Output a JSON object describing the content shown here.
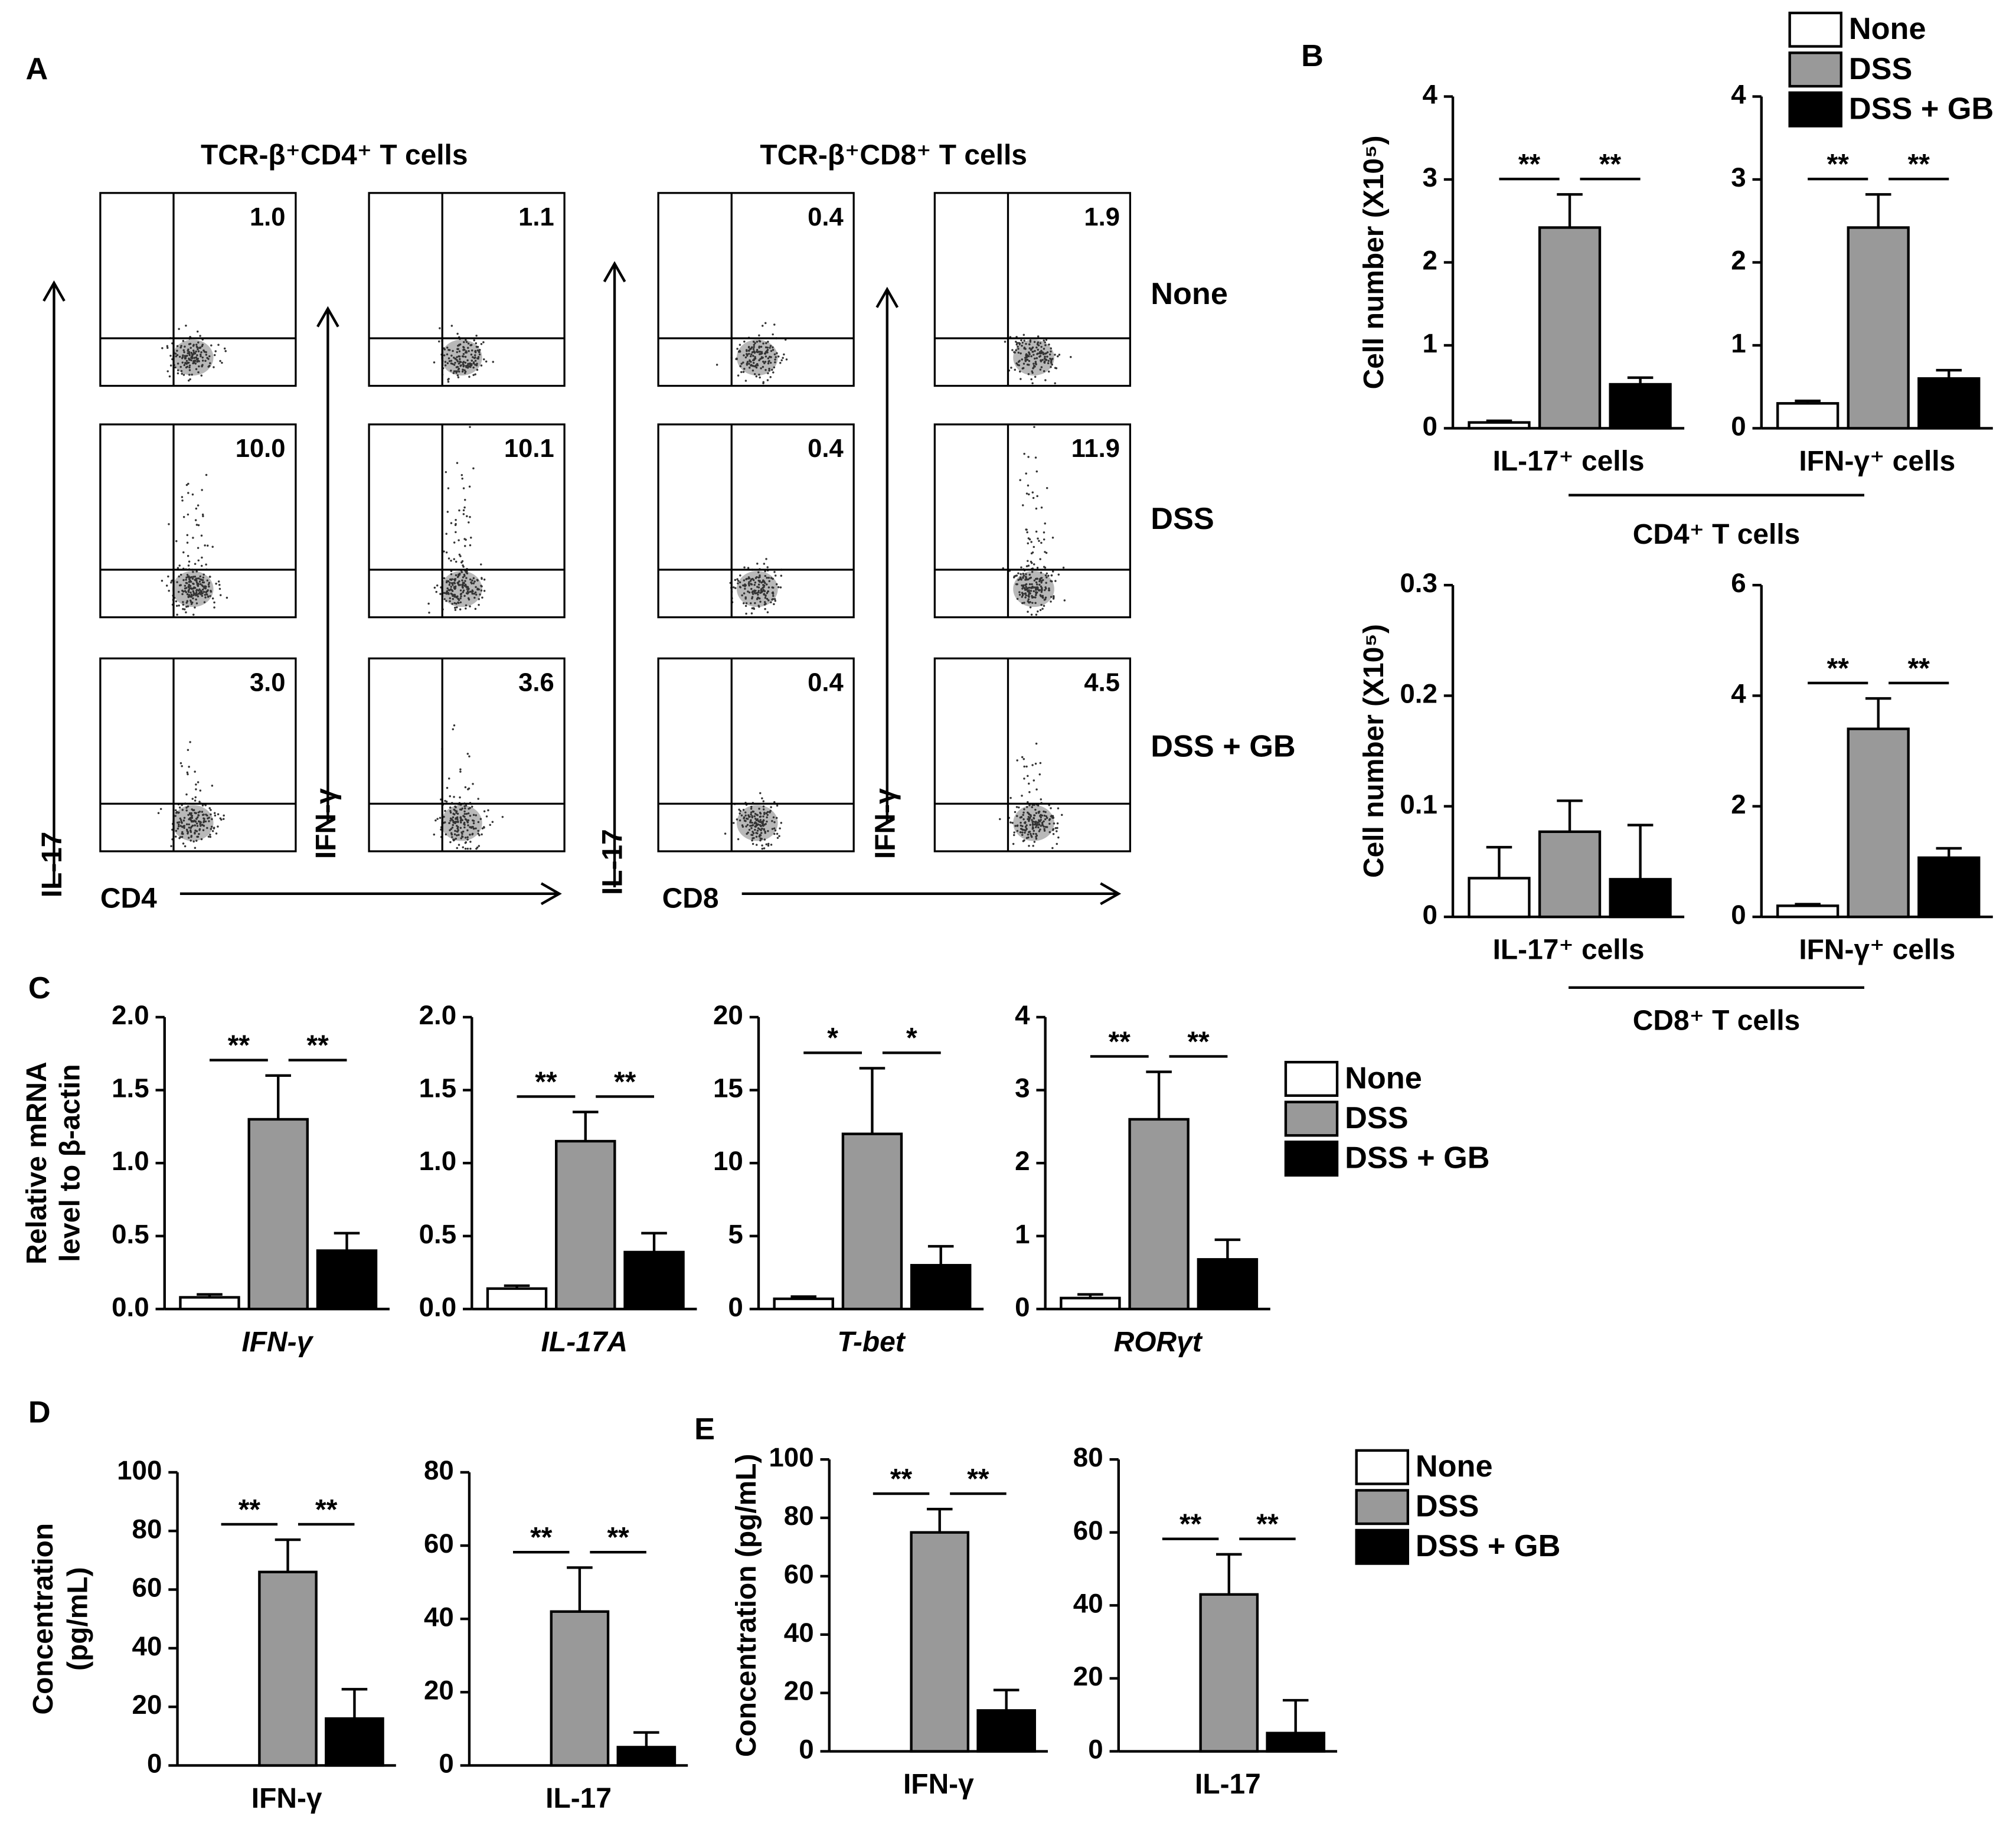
{
  "panel_labels": [
    "A",
    "B",
    "C",
    "D",
    "E"
  ],
  "flow": {
    "column_titles": [
      "TCR-β⁺CD4⁺ T cells",
      "TCR-β⁺CD8⁺ T cells"
    ],
    "row_labels": [
      "None",
      "DSS",
      "DSS + GB"
    ],
    "y_labels": [
      "IL-17",
      "IFN-γ",
      "IL-17",
      "IFN-γ"
    ],
    "x_labels": [
      "CD4",
      "CD8"
    ],
    "percentages": [
      [
        "1.0",
        "1.1",
        "0.4",
        "1.9"
      ],
      [
        "10.0",
        "10.1",
        "0.4",
        "11.9"
      ],
      [
        "3.0",
        "3.6",
        "0.4",
        "4.5"
      ]
    ]
  },
  "groups": [
    {
      "label": "CD4⁺ T cells"
    },
    {
      "label": "CD8⁺ T cells"
    }
  ],
  "legends": [
    {
      "entries": [
        {
          "name": "None",
          "color": "#ffffff"
        },
        {
          "name": "DSS",
          "color": "#999999"
        },
        {
          "name": "DSS + GB",
          "color": "#000000"
        }
      ]
    },
    {
      "entries": [
        {
          "name": "None",
          "color": "#ffffff"
        },
        {
          "name": "DSS",
          "color": "#999999"
        },
        {
          "name": "DSS + GB",
          "color": "#000000"
        }
      ]
    },
    {
      "entries": [
        {
          "name": "None",
          "color": "#ffffff"
        },
        {
          "name": "DSS",
          "color": "#999999"
        },
        {
          "name": "DSS + GB",
          "color": "#000000"
        }
      ]
    }
  ],
  "chart_data": [
    {
      "type": "bar",
      "xlabel": "IL-17⁺ cells",
      "ylabel": "Cell number (X10⁵)",
      "values": [
        0.07,
        2.42,
        0.53
      ],
      "errors": [
        0.02,
        0.4,
        0.08
      ],
      "colors": [
        "#ffffff",
        "#999999",
        "#000000"
      ],
      "ylim": [
        0,
        4
      ],
      "yticks": [
        0,
        1,
        2,
        3,
        4
      ],
      "significance": [
        "**",
        "**"
      ]
    },
    {
      "type": "bar",
      "xlabel": "IFN-γ⁺ cells",
      "values": [
        0.3,
        2.42,
        0.6
      ],
      "errors": [
        0.03,
        0.4,
        0.1
      ],
      "colors": [
        "#ffffff",
        "#999999",
        "#000000"
      ],
      "ylim": [
        0,
        4
      ],
      "yticks": [
        0,
        1,
        2,
        3,
        4
      ],
      "significance": [
        "**",
        "**"
      ]
    },
    {
      "type": "bar",
      "xlabel": "IL-17⁺ cells",
      "ylabel": "Cell number (X10⁵)",
      "values": [
        0.035,
        0.077,
        0.034
      ],
      "errors": [
        0.028,
        0.028,
        0.049
      ],
      "colors": [
        "#ffffff",
        "#999999",
        "#000000"
      ],
      "ylim": [
        0,
        0.3
      ],
      "yticks": [
        0,
        0.1,
        0.2,
        0.3
      ]
    },
    {
      "type": "bar",
      "xlabel": "IFN-γ⁺ cells",
      "values": [
        0.2,
        3.4,
        1.07
      ],
      "errors": [
        0.03,
        0.55,
        0.17
      ],
      "colors": [
        "#ffffff",
        "#999999",
        "#000000"
      ],
      "ylim": [
        0,
        6
      ],
      "yticks": [
        0,
        2,
        4,
        6
      ],
      "significance": [
        "**",
        "**"
      ]
    },
    {
      "type": "bar",
      "xlabel": "IFN-γ",
      "ylabel": [
        "Relative mRNA",
        "level to β-actin"
      ],
      "values": [
        0.08,
        1.3,
        0.4
      ],
      "errors": [
        0.02,
        0.3,
        0.12
      ],
      "colors": [
        "#ffffff",
        "#999999",
        "#000000"
      ],
      "ylim": [
        0,
        2
      ],
      "yticks": [
        {
          "value": 0,
          "label": "0.0"
        },
        0.5,
        {
          "value": 1,
          "label": "1.0"
        },
        1.5,
        {
          "value": 2,
          "label": "2.0"
        }
      ],
      "significance": [
        "**",
        "**"
      ]
    },
    {
      "type": "bar",
      "xlabel": "IL-17A",
      "values": [
        0.14,
        1.15,
        0.39
      ],
      "errors": [
        0.02,
        0.2,
        0.13
      ],
      "colors": [
        "#ffffff",
        "#999999",
        "#000000"
      ],
      "ylim": [
        0,
        2
      ],
      "yticks": [
        {
          "value": 0,
          "label": "0.0"
        },
        0.5,
        {
          "value": 1,
          "label": "1.0"
        },
        1.5,
        {
          "value": 2,
          "label": "2.0"
        }
      ],
      "significance": [
        "**",
        "**"
      ]
    },
    {
      "type": "bar",
      "xlabel": "T-bet",
      "values": [
        0.7,
        12,
        3
      ],
      "errors": [
        0.15,
        4.5,
        1.3
      ],
      "colors": [
        "#ffffff",
        "#999999",
        "#000000"
      ],
      "ylim": [
        0,
        20
      ],
      "yticks": [
        0,
        5,
        10,
        15,
        20
      ],
      "significance": [
        "*",
        "*"
      ]
    },
    {
      "type": "bar",
      "xlabel": "RORγt",
      "values": [
        0.15,
        2.6,
        0.68
      ],
      "errors": [
        0.05,
        0.65,
        0.27
      ],
      "colors": [
        "#ffffff",
        "#999999",
        "#000000"
      ],
      "ylim": [
        0,
        4
      ],
      "yticks": [
        0,
        1,
        2,
        3,
        4
      ],
      "significance": [
        "**",
        "**"
      ]
    },
    {
      "type": "bar",
      "xlabel": "IFN-γ",
      "ylabel": [
        "Concentration",
        "(pg/mL)"
      ],
      "values": [
        0,
        66,
        16
      ],
      "errors": [
        null,
        11,
        10
      ],
      "colors": [
        "#ffffff",
        "#999999",
        "#000000"
      ],
      "ylim": [
        0,
        100
      ],
      "yticks": [
        0,
        20,
        40,
        60,
        80,
        100
      ],
      "significance": [
        "**",
        "**"
      ]
    },
    {
      "type": "bar",
      "xlabel": "IL-17",
      "values": [
        0,
        42,
        5
      ],
      "errors": [
        null,
        12,
        4
      ],
      "colors": [
        "#ffffff",
        "#999999",
        "#000000"
      ],
      "ylim": [
        0,
        80
      ],
      "yticks": [
        0,
        20,
        40,
        60,
        80
      ],
      "significance": [
        "**",
        "**"
      ]
    },
    {
      "type": "bar",
      "xlabel": "IFN-γ",
      "ylabel": "Concentration (pg/mL)",
      "values": [
        0,
        75,
        14
      ],
      "errors": [
        null,
        8,
        7
      ],
      "colors": [
        "#ffffff",
        "#999999",
        "#000000"
      ],
      "ylim": [
        0,
        100
      ],
      "yticks": [
        0,
        20,
        40,
        60,
        80,
        100
      ],
      "significance": [
        "**",
        "**"
      ]
    },
    {
      "type": "bar",
      "xlabel": "IL-17",
      "values": [
        0,
        43,
        5
      ],
      "errors": [
        null,
        11,
        9
      ],
      "colors": [
        "#ffffff",
        "#999999",
        "#000000"
      ],
      "ylim": [
        0,
        80
      ],
      "yticks": [
        0,
        20,
        40,
        60,
        80
      ],
      "significance": [
        "**",
        "**"
      ]
    }
  ]
}
